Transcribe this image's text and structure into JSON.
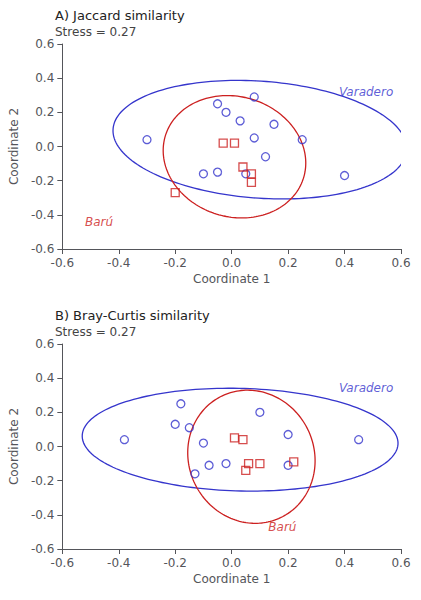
{
  "chart_data": [
    {
      "type": "scatter",
      "title": "A) Jaccard similarity",
      "subtitle": "Stress = 0.27",
      "xlabel": "Coordinate 1",
      "ylabel": "Coordinate 2",
      "xlim": [
        -0.6,
        0.6
      ],
      "ylim": [
        -0.6,
        0.6
      ],
      "xticks": [
        -0.6,
        -0.4,
        -0.2,
        {
          "value": 0,
          "label": "0.0"
        },
        0.2,
        0.4,
        0.6
      ],
      "yticks": [
        -0.6,
        -0.4,
        -0.2,
        {
          "value": 0,
          "label": "0.0"
        },
        0.2,
        0.4,
        0.6
      ],
      "grid": false,
      "series": [
        {
          "name": "Varadero",
          "color": "#3535cc",
          "marker": "open circle",
          "x": [
            -0.3,
            -0.05,
            -0.02,
            0.03,
            0.08,
            0.15,
            0.08,
            0.25,
            -0.1,
            -0.05,
            0.05,
            0.12,
            0.4
          ],
          "y": [
            0.04,
            0.25,
            0.2,
            0.15,
            0.29,
            0.13,
            0.05,
            0.04,
            -0.16,
            -0.15,
            -0.16,
            -0.06,
            -0.17
          ],
          "ellipse": {
            "cx": 0.1,
            "cy": 0.04,
            "width": 1.05,
            "height": 0.68,
            "angle": -10
          },
          "name_at": [
            0.38,
            0.32
          ]
        },
        {
          "name": "Barú",
          "color": "#cc2020",
          "marker": "open square",
          "x": [
            -0.2,
            -0.03,
            0.01,
            0.04,
            0.07,
            0.07
          ],
          "y": [
            -0.27,
            0.02,
            0.02,
            -0.12,
            -0.16,
            -0.21
          ],
          "ellipse": {
            "cx": 0.01,
            "cy": -0.06,
            "width": 0.5,
            "height": 0.72,
            "angle": 8
          },
          "name_at": [
            -0.52,
            -0.44
          ]
        }
      ]
    },
    {
      "type": "scatter",
      "title": "B) Bray-Curtis similarity",
      "subtitle": "Stress = 0.27",
      "xlabel": "Coordinate 1",
      "ylabel": "Coordinate 2",
      "xlim": [
        -0.6,
        0.6
      ],
      "ylim": [
        -0.6,
        0.6
      ],
      "xticks": [
        -0.6,
        -0.4,
        -0.2,
        {
          "value": 0,
          "label": "0.0"
        },
        0.2,
        0.4,
        0.6
      ],
      "yticks": [
        -0.6,
        -0.4,
        -0.2,
        {
          "value": 0,
          "label": "0.0"
        },
        0.2,
        0.4,
        0.6
      ],
      "grid": false,
      "series": [
        {
          "name": "Varadero",
          "color": "#3535cc",
          "marker": "open circle",
          "x": [
            -0.38,
            -0.2,
            -0.18,
            -0.15,
            -0.13,
            -0.1,
            -0.08,
            -0.02,
            0.1,
            0.2,
            0.2,
            0.45
          ],
          "y": [
            0.04,
            0.13,
            0.25,
            0.11,
            -0.16,
            0.02,
            -0.11,
            -0.1,
            0.2,
            0.07,
            -0.11,
            0.04
          ],
          "ellipse": {
            "cx": 0.03,
            "cy": 0.04,
            "width": 1.12,
            "height": 0.6,
            "angle": -3
          },
          "name_at": [
            0.38,
            0.34
          ]
        },
        {
          "name": "Barú",
          "color": "#cc2020",
          "marker": "open square",
          "x": [
            0.01,
            0.04,
            0.05,
            0.06,
            0.1,
            0.22
          ],
          "y": [
            0.05,
            0.04,
            -0.14,
            -0.1,
            -0.1,
            -0.09
          ],
          "ellipse": {
            "cx": 0.07,
            "cy": -0.06,
            "width": 0.45,
            "height": 0.78,
            "angle": 3
          },
          "name_at": [
            0.13,
            -0.47
          ]
        }
      ]
    }
  ]
}
